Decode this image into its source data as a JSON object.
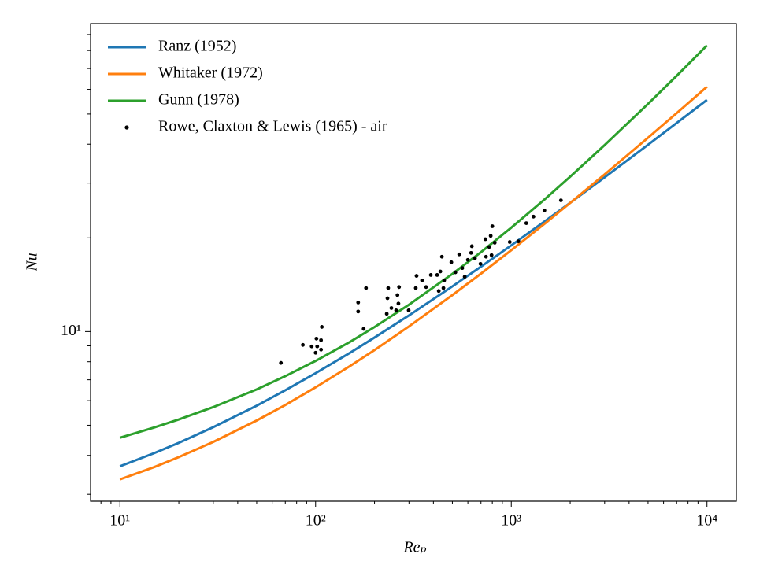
{
  "chart_data": {
    "type": "line",
    "xlabel": "Reₚ",
    "ylabel": "Nu",
    "xscale": "log",
    "yscale": "log",
    "xlim": [
      7.08,
      14125
    ],
    "ylim": [
      2.85,
      97.6
    ],
    "xticks": [
      {
        "value": 10,
        "label": "10¹"
      },
      {
        "value": 100,
        "label": "10²"
      },
      {
        "value": 1000,
        "label": "10³"
      },
      {
        "value": 10000,
        "label": "10⁴"
      }
    ],
    "xminorticks": [
      8,
      9,
      20,
      30,
      40,
      50,
      60,
      70,
      80,
      90,
      200,
      300,
      400,
      500,
      600,
      700,
      800,
      900,
      2000,
      3000,
      4000,
      5000,
      6000,
      7000,
      8000,
      9000
    ],
    "yticks": [
      {
        "value": 10,
        "label": "10¹"
      }
    ],
    "yminorticks": [
      3,
      4,
      5,
      6,
      7,
      8,
      9,
      20,
      30,
      40,
      50,
      60,
      70,
      80,
      90
    ],
    "legend": "upper left",
    "x": [
      10,
      15,
      20,
      30,
      50,
      70,
      100,
      150,
      200,
      300,
      500,
      700,
      1000,
      1500,
      2000,
      3000,
      5000,
      7000,
      10000
    ],
    "series": [
      {
        "name": "Ranz (1952)",
        "color": "#1f77b4",
        "style": "line",
        "values": [
          3.69,
          4.07,
          4.39,
          4.93,
          5.78,
          6.48,
          7.35,
          8.55,
          9.57,
          11.27,
          13.97,
          16.16,
          18.92,
          22.73,
          25.93,
          31.31,
          39.84,
          46.78,
          55.52
        ]
      },
      {
        "name": "Whitaker (1972)",
        "color": "#ff7f0e",
        "style": "line",
        "values": [
          3.35,
          3.67,
          3.95,
          4.42,
          5.18,
          5.81,
          6.62,
          7.75,
          8.72,
          10.39,
          13.1,
          15.35,
          18.26,
          22.36,
          25.9,
          31.99,
          41.96,
          50.33,
          61.17
        ]
      },
      {
        "name": "Gunn (1978)",
        "color": "#2ca02c",
        "style": "line",
        "values": [
          4.56,
          4.92,
          5.22,
          5.72,
          6.52,
          7.19,
          8.05,
          9.27,
          10.34,
          12.2,
          15.32,
          18.0,
          21.57,
          26.78,
          31.46,
          39.73,
          53.91,
          66.32,
          83.05
        ]
      },
      {
        "name": "Rowe, Claxton & Lewis (1965) - air",
        "color": "#000000",
        "style": "scatter",
        "x": [
          66.5,
          86.1,
          95.5,
          100,
          101,
          101.9,
          106.6,
          107.6,
          106.6,
          165,
          165,
          176,
          181,
          233,
          235,
          231,
          244,
          258,
          262,
          267,
          265,
          299,
          325,
          328,
          350,
          367,
          388,
          418,
          426,
          434,
          442,
          450,
          454,
          494,
          518,
          542,
          562,
          578,
          600,
          623,
          629,
          652,
          696,
          737,
          743,
          771,
          785,
          793,
          800,
          823,
          982,
          1087,
          1193,
          1298,
          1477,
          1794
        ],
        "values": [
          7.93,
          9.06,
          8.96,
          8.55,
          9.49,
          8.96,
          9.38,
          10.35,
          8.75,
          12.4,
          11.6,
          10.2,
          13.8,
          12.8,
          13.8,
          11.4,
          11.9,
          11.7,
          13.1,
          13.9,
          12.3,
          11.7,
          13.8,
          15.1,
          14.6,
          13.9,
          15.2,
          15.2,
          13.5,
          15.6,
          17.4,
          13.8,
          14.6,
          16.7,
          15.5,
          17.7,
          16.0,
          15.0,
          17.0,
          17.9,
          18.8,
          17.2,
          16.5,
          19.8,
          17.4,
          18.7,
          20.3,
          17.6,
          21.8,
          19.3,
          19.4,
          19.5,
          22.3,
          23.4,
          24.5,
          26.4
        ]
      }
    ]
  }
}
